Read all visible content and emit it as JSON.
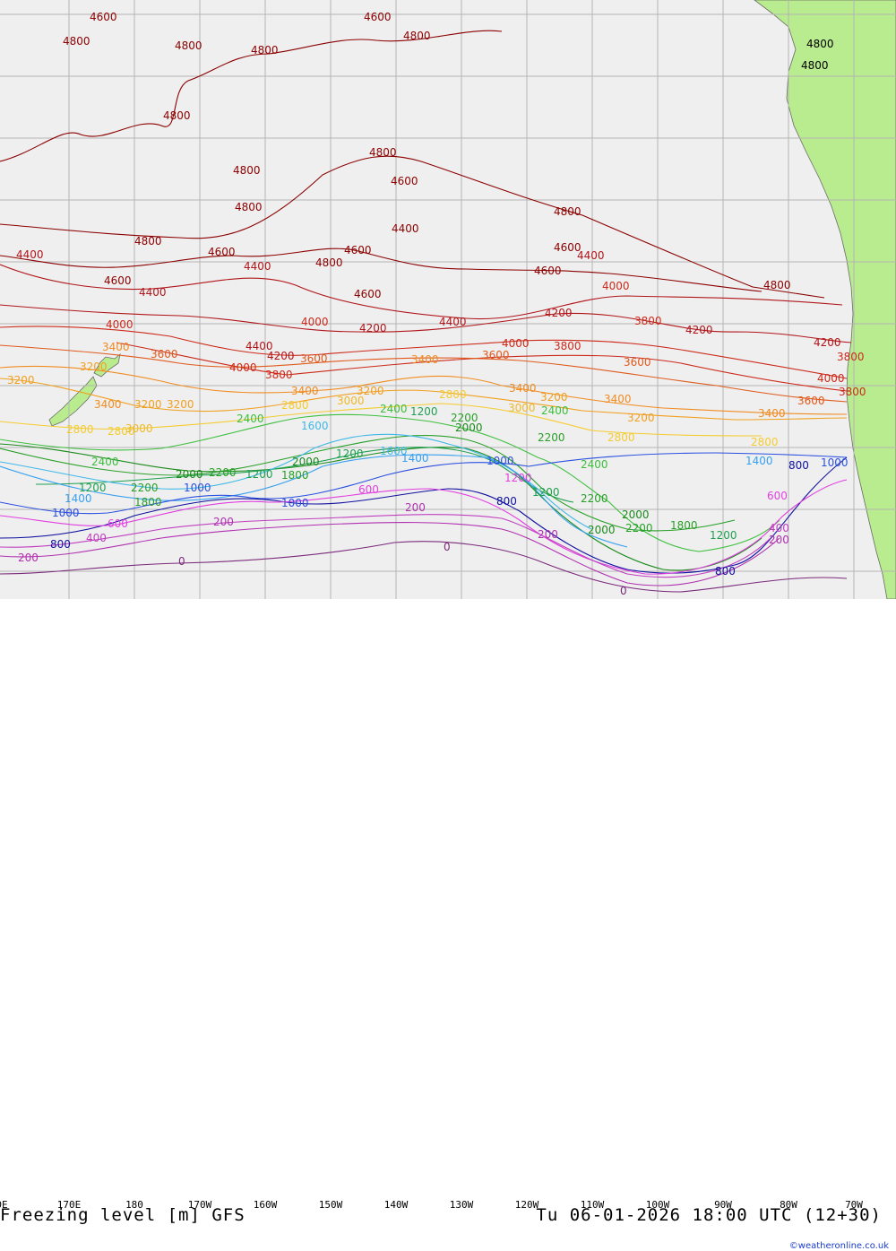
{
  "map": {
    "title": "Freezing level [m] GFS",
    "valid_time": "Tu 06-01-2026 18:00 UTC (12+30)",
    "credit": "©weatheronline.co.uk",
    "longitude_ticks": [
      "0E",
      "170E",
      "180",
      "170W",
      "160W",
      "150W",
      "140W",
      "130W",
      "120W",
      "110W",
      "100W",
      "90W",
      "80W",
      "70W"
    ],
    "colors": {
      "ocean": "#efefef",
      "land": "#b9ec8e",
      "grid": "#b4b4b4",
      "c4800": "#8b0000",
      "c4400": "#b0161a",
      "c4000": "#cc2a1a",
      "c3600": "#e05a1c",
      "c3200": "#f0a020",
      "c2800": "#f5cc30",
      "c2400": "#3cbf3c",
      "c2000": "#28a028",
      "c1600": "#1fa050",
      "c1400": "#3fb8e8",
      "c1200": "#35a0f0",
      "c1000": "#2a50e0",
      "c800": "#1010a0",
      "c600": "#e040e0",
      "c200": "#b030b0",
      "c0": "#7a2a7a"
    },
    "contour_labels": [
      {
        "text": "4800",
        "level": 4800
      },
      {
        "text": "4600",
        "level": 4600
      },
      {
        "text": "4400",
        "level": 4400
      },
      {
        "text": "4200",
        "level": 4200
      },
      {
        "text": "4000",
        "level": 4000
      },
      {
        "text": "3800",
        "level": 3800
      },
      {
        "text": "3600",
        "level": 3600
      },
      {
        "text": "3400",
        "level": 3400
      },
      {
        "text": "3200",
        "level": 3200
      },
      {
        "text": "3000",
        "level": 3000
      },
      {
        "text": "2800",
        "level": 2800
      },
      {
        "text": "2400",
        "level": 2400
      },
      {
        "text": "2200",
        "level": 2200
      },
      {
        "text": "2000",
        "level": 2000
      },
      {
        "text": "1800",
        "level": 1800
      },
      {
        "text": "1600",
        "level": 1600
      },
      {
        "text": "1400",
        "level": 1400
      },
      {
        "text": "1200",
        "level": 1200
      },
      {
        "text": "1000",
        "level": 1000
      },
      {
        "text": "800",
        "level": 800
      },
      {
        "text": "600",
        "level": 600
      },
      {
        "text": "400",
        "level": 400
      },
      {
        "text": "200",
        "level": 200
      },
      {
        "text": "0",
        "level": 0
      }
    ]
  }
}
